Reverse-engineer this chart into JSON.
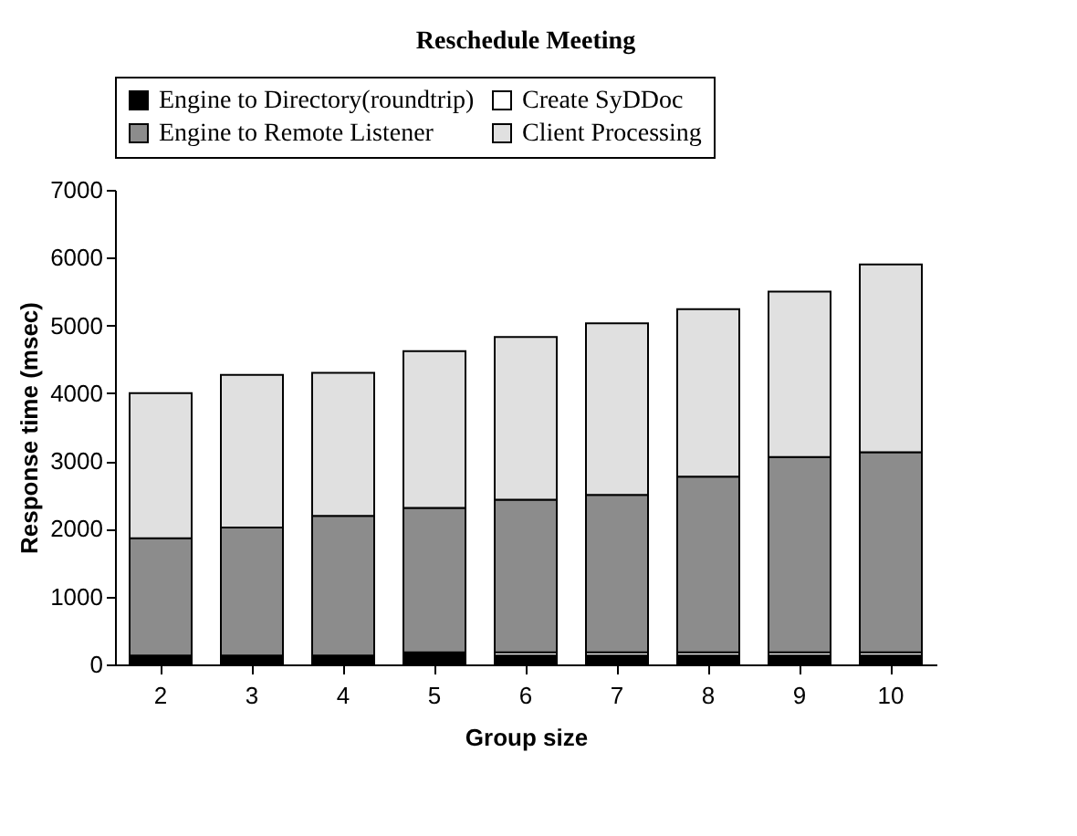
{
  "chart_data": {
    "type": "bar",
    "title": "Reschedule Meeting",
    "xlabel": "Group size",
    "ylabel": "Response time (msec)",
    "categories": [
      "2",
      "3",
      "4",
      "5",
      "6",
      "7",
      "8",
      "9",
      "10"
    ],
    "stacked": true,
    "legend": "top",
    "grid": false,
    "ylim": [
      0,
      7000
    ],
    "yticks": [
      0,
      1000,
      2000,
      3000,
      4000,
      5000,
      6000,
      7000
    ],
    "series": [
      {
        "name": "Engine to Directory(roundtrip)",
        "color": "#000000",
        "values": [
          130,
          130,
          130,
          180,
          130,
          130,
          130,
          130,
          130
        ]
      },
      {
        "name": "Create SyDDoc",
        "color": "#ffffff",
        "values": [
          0,
          0,
          0,
          0,
          50,
          50,
          50,
          50,
          50
        ]
      },
      {
        "name": "Engine to Remote Listener",
        "color": "#8c8c8c",
        "values": [
          1730,
          1890,
          2060,
          2130,
          2250,
          2320,
          2590,
          2880,
          2950
        ]
      },
      {
        "name": "Client Processing",
        "color": "#e0e0e0",
        "values": [
          2140,
          2250,
          2110,
          2310,
          2400,
          2530,
          2470,
          2440,
          2770
        ]
      }
    ]
  }
}
